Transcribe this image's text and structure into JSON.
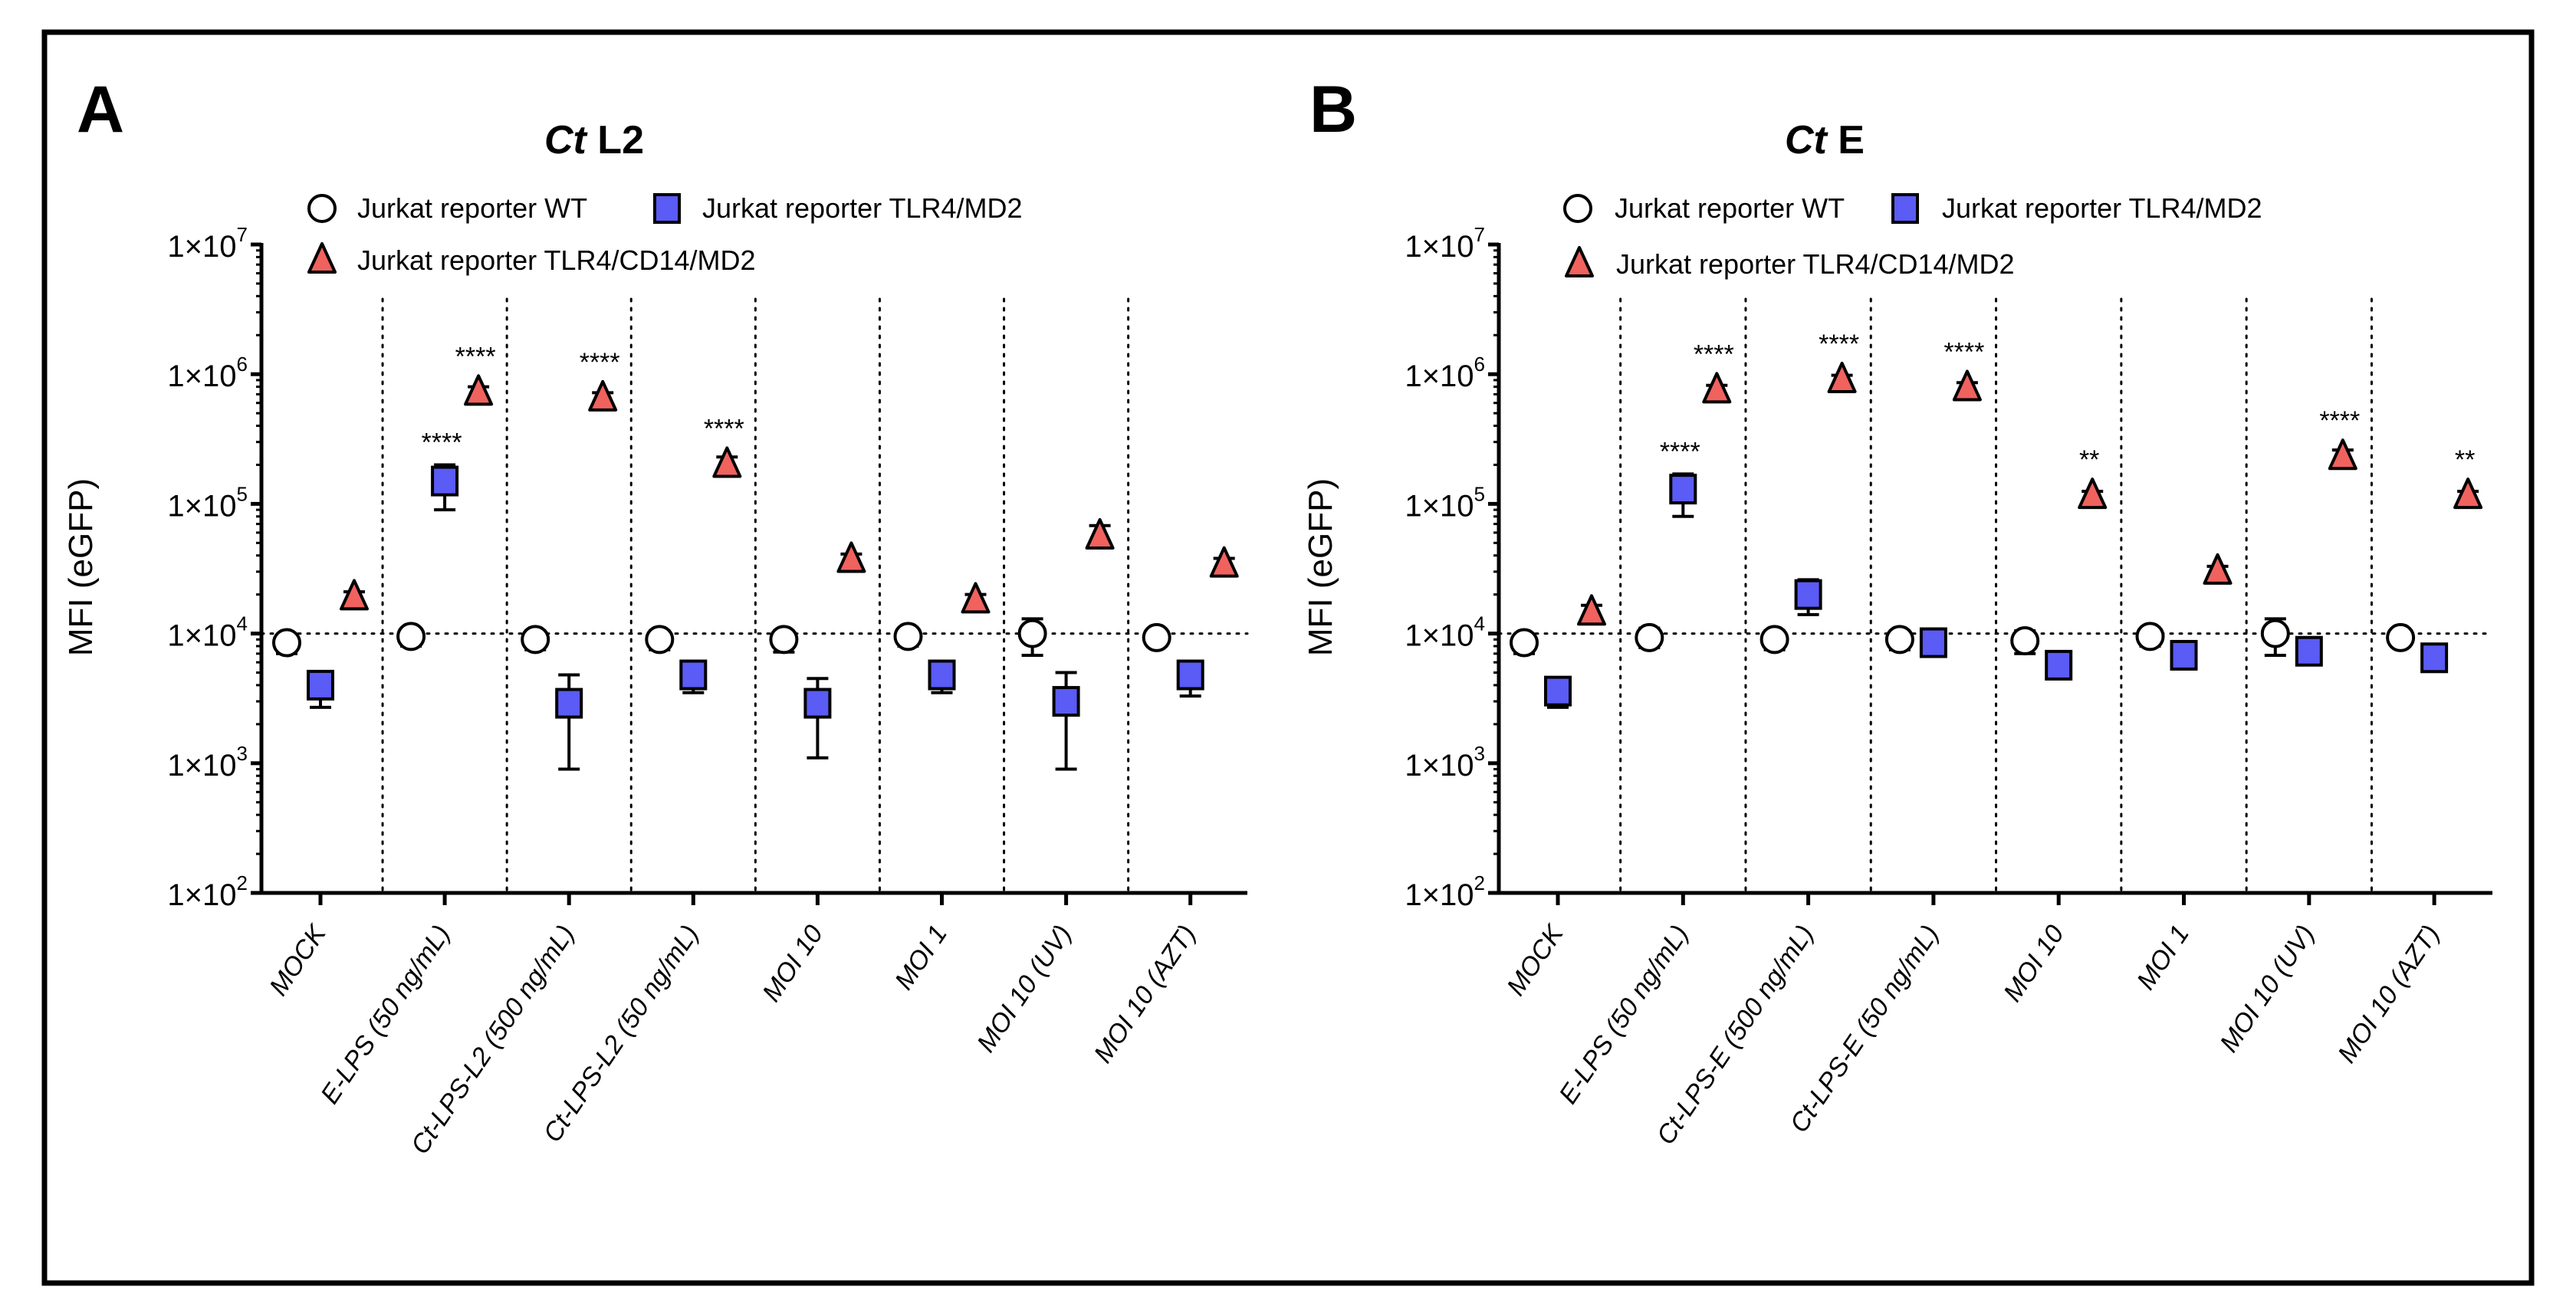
{
  "colors": {
    "wt": "#ffffff",
    "tlr4md2": "#5b5bf5",
    "tlr4cd14md2": "#f0625e",
    "stroke": "#000000"
  },
  "chart_data": [
    {
      "type": "scatter",
      "panel_letter": "A",
      "title_italic": "Ct",
      "title_rest": " L2",
      "ylabel": "MFI (eGFP)",
      "yscale": "log",
      "ylim": [
        100,
        10000000
      ],
      "ytick_labels": [
        [
          "1×10",
          "2"
        ],
        [
          "1×10",
          "3"
        ],
        [
          "1×10",
          "4"
        ],
        [
          "1×10",
          "5"
        ],
        [
          "1×10",
          "6"
        ],
        [
          "1×10",
          "7"
        ]
      ],
      "reference_line": 10000,
      "legend": [
        "Jurkat reporter WT",
        "Jurkat reporter TLR4/MD2",
        "Jurkat reporter TLR4/CD14/MD2"
      ],
      "categories": [
        "MOCK",
        "E-LPS (50 ng/mL)",
        "Ct-LPS-L2 (500 ng/mL)",
        "Ct-LPS-L2 (50 ng/mL)",
        "MOI 10",
        "MOI 1",
        "MOI 10 (UV)",
        "MOI 10 (AZT)"
      ],
      "series": [
        {
          "name": "Jurkat reporter WT",
          "marker": "circle",
          "values": [
            8500,
            9500,
            9000,
            9000,
            9000,
            9500,
            10000,
            9300
          ],
          "err_low": [
            7000,
            8000,
            7500,
            7500,
            7200,
            8000,
            6800,
            8000
          ],
          "err_high": [
            9500,
            11000,
            10500,
            10500,
            10500,
            11000,
            13000,
            10500
          ],
          "stars": [
            "",
            "",
            "",
            "",
            "",
            "",
            "",
            ""
          ]
        },
        {
          "name": "Jurkat reporter TLR4/MD2",
          "marker": "square",
          "values": [
            4000,
            150000,
            2900,
            4800,
            2900,
            4800,
            3000,
            4800
          ],
          "err_low": [
            2700,
            90000,
            900,
            3500,
            1100,
            3500,
            900,
            3300
          ],
          "err_high": [
            5000,
            200000,
            4800,
            6000,
            4500,
            6000,
            5000,
            6000
          ],
          "stars": [
            "",
            "****",
            "",
            "",
            "",
            "",
            "",
            ""
          ]
        },
        {
          "name": "Jurkat reporter TLR4/CD14/MD2",
          "marker": "triangle",
          "values": [
            19000,
            720000,
            650000,
            200000,
            37000,
            18000,
            56000,
            34000
          ],
          "err_low": [
            17000,
            650000,
            600000,
            180000,
            33000,
            16000,
            50000,
            31000
          ],
          "err_high": [
            21000,
            800000,
            720000,
            230000,
            41000,
            20000,
            68000,
            38000
          ],
          "stars": [
            "",
            "****",
            "****",
            "****",
            "",
            "",
            "",
            ""
          ]
        }
      ]
    },
    {
      "type": "scatter",
      "panel_letter": "B",
      "title_italic": "Ct",
      "title_rest": " E",
      "ylabel": "MFI (eGFP)",
      "yscale": "log",
      "ylim": [
        100,
        10000000
      ],
      "ytick_labels": [
        [
          "1×10",
          "2"
        ],
        [
          "1×10",
          "3"
        ],
        [
          "1×10",
          "4"
        ],
        [
          "1×10",
          "5"
        ],
        [
          "1×10",
          "6"
        ],
        [
          "1×10",
          "7"
        ]
      ],
      "reference_line": 10000,
      "legend": [
        "Jurkat reporter WT",
        "Jurkat reporter TLR4/MD2",
        "Jurkat reporter TLR4/CD14/MD2"
      ],
      "categories": [
        "MOCK",
        "E-LPS (50 ng/mL)",
        "Ct-LPS-E (500 ng/mL)",
        "Ct-LPS-E (50 ng/mL)",
        "MOI 10",
        "MOI 1",
        "MOI 10 (UV)",
        "MOI 10 (AZT)"
      ],
      "series": [
        {
          "name": "Jurkat reporter WT",
          "marker": "circle",
          "values": [
            8500,
            9300,
            9000,
            9000,
            8800,
            9500,
            10000,
            9300
          ],
          "err_low": [
            7000,
            7800,
            7500,
            7500,
            7000,
            8000,
            6800,
            8000
          ],
          "err_high": [
            9500,
            11000,
            10500,
            10500,
            10500,
            11000,
            13000,
            10500
          ],
          "stars": [
            "",
            "",
            "",
            "",
            "",
            "",
            "",
            ""
          ]
        },
        {
          "name": "Jurkat reporter TLR4/MD2",
          "marker": "square",
          "values": [
            3600,
            130000,
            20000,
            8500,
            5700,
            6800,
            7300,
            6500
          ],
          "err_low": [
            2700,
            80000,
            14000,
            8000,
            5400,
            6400,
            7000,
            6200
          ],
          "err_high": [
            4500,
            170000,
            26000,
            9000,
            6000,
            7200,
            7700,
            6800
          ],
          "stars": [
            "",
            "****",
            "",
            "",
            "",
            "",
            "",
            ""
          ]
        },
        {
          "name": "Jurkat reporter TLR4/CD14/MD2",
          "marker": "triangle",
          "values": [
            14500,
            750000,
            900000,
            780000,
            115000,
            30000,
            230000,
            115000
          ],
          "err_low": [
            13000,
            680000,
            800000,
            700000,
            105000,
            27000,
            210000,
            105000
          ],
          "err_high": [
            16500,
            820000,
            980000,
            860000,
            125000,
            33000,
            260000,
            125000
          ],
          "stars": [
            "",
            "****",
            "****",
            "****",
            "**",
            "",
            "****",
            "**"
          ]
        }
      ]
    }
  ]
}
